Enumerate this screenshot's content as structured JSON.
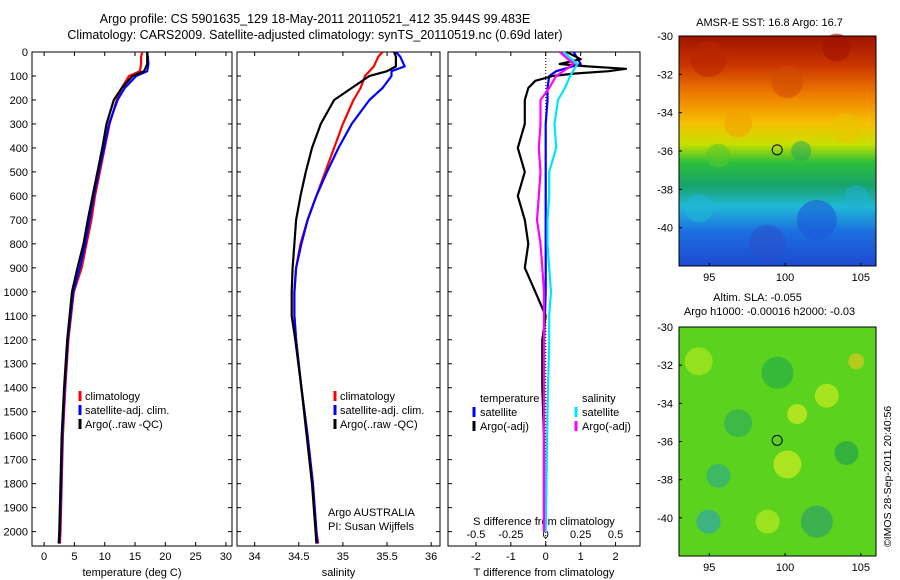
{
  "title_line1": "Argo profile: CS 5901635_129 18-May-2011 20110521_412 35.944S 99.483E",
  "title_line2": "Climatology: CARS2009. Satellite-adjusted climatology: synTS_20110519.nc (0.69d later)",
  "footer_stamp": "©IMOS 28-Sep-2011 20:40:56",
  "colors": {
    "climatology": "#ff0000",
    "satellite": "#0000ff",
    "argo": "#000000",
    "satellite_s": "#00e5ff",
    "argo_s": "#ff00ff"
  },
  "chart_data": [
    {
      "id": "temperature",
      "type": "line",
      "xlabel": "temperature (deg C)",
      "xlim": [
        -2,
        31
      ],
      "ylim": [
        0,
        2060
      ],
      "y_reversed": true,
      "xticks": [
        0,
        5,
        10,
        15,
        20,
        25,
        30
      ],
      "yticks": [
        0,
        100,
        200,
        300,
        400,
        500,
        600,
        700,
        800,
        900,
        1000,
        1100,
        1200,
        1300,
        1400,
        1500,
        1600,
        1700,
        1800,
        1900,
        2000
      ],
      "legend": [
        "climatology",
        "satellite-adj. clim.",
        "Argo(..raw -QC)"
      ],
      "series": [
        {
          "name": "climatology",
          "color": "red",
          "y": [
            0,
            20,
            50,
            80,
            100,
            150,
            200,
            300,
            400,
            500,
            600,
            700,
            800,
            900,
            1000,
            1200,
            1400,
            1600,
            1800,
            2000,
            2050
          ],
          "values": [
            16.2,
            16.0,
            16.0,
            15.8,
            14.0,
            12.8,
            12.0,
            10.8,
            10.0,
            9.2,
            8.4,
            7.8,
            7.0,
            6.2,
            4.9,
            4.0,
            3.5,
            3.1,
            2.9,
            2.7,
            2.6
          ]
        },
        {
          "name": "satellite-adj. clim.",
          "color": "blue",
          "y": [
            0,
            20,
            50,
            80,
            100,
            150,
            200,
            300,
            400,
            500,
            600,
            700,
            800,
            900,
            1000,
            1200,
            1400,
            1600,
            1800,
            2000,
            2050
          ],
          "values": [
            17.0,
            17.1,
            17.2,
            17.0,
            15.2,
            13.3,
            12.1,
            10.7,
            9.9,
            9.0,
            8.2,
            7.5,
            6.8,
            5.9,
            4.8,
            3.9,
            3.4,
            3.0,
            2.8,
            2.6,
            2.5
          ]
        },
        {
          "name": "Argo(..raw -QC)",
          "color": "black",
          "y": [
            0,
            20,
            50,
            80,
            100,
            150,
            200,
            300,
            400,
            500,
            600,
            700,
            800,
            900,
            1000,
            1200,
            1400,
            1600,
            1800,
            2000,
            2050
          ],
          "values": [
            17.0,
            17.0,
            17.0,
            16.5,
            14.6,
            12.8,
            11.5,
            10.3,
            9.6,
            8.8,
            8.0,
            7.2,
            6.5,
            5.5,
            4.6,
            3.8,
            3.3,
            2.9,
            2.7,
            2.5,
            2.4
          ]
        }
      ]
    },
    {
      "id": "salinity",
      "type": "line",
      "xlabel": "salinity",
      "xlim": [
        33.8,
        36.1
      ],
      "ylim": [
        0,
        2060
      ],
      "y_reversed": true,
      "xticks": [
        34,
        34.5,
        35,
        35.5,
        36
      ],
      "legend": [
        "climatology",
        "satellite-adj. clim.",
        "Argo(..raw -QC)"
      ],
      "annotation": [
        "Argo AUSTRALIA",
        "PI: Susan Wijffels"
      ],
      "series": [
        {
          "name": "climatology",
          "color": "red",
          "y": [
            0,
            20,
            60,
            80,
            100,
            150,
            200,
            300,
            400,
            500,
            600,
            700,
            800,
            900,
            1000,
            1100,
            1200,
            1400,
            1600,
            1800,
            2000,
            2050
          ],
          "values": [
            35.45,
            35.4,
            35.35,
            35.3,
            35.25,
            35.2,
            35.12,
            35.0,
            34.9,
            34.8,
            34.7,
            34.6,
            34.52,
            34.47,
            34.45,
            34.45,
            34.47,
            34.53,
            34.6,
            34.66,
            34.7,
            34.72
          ]
        },
        {
          "name": "satellite-adj. clim.",
          "color": "blue",
          "y": [
            0,
            20,
            60,
            80,
            100,
            150,
            200,
            300,
            400,
            500,
            600,
            700,
            800,
            900,
            1000,
            1100,
            1200,
            1400,
            1600,
            1800,
            2000,
            2050
          ],
          "values": [
            35.6,
            35.65,
            35.7,
            35.55,
            35.55,
            35.45,
            35.3,
            35.1,
            34.95,
            34.82,
            34.7,
            34.6,
            34.53,
            34.47,
            34.45,
            34.45,
            34.47,
            34.53,
            34.6,
            34.66,
            34.7,
            34.71
          ]
        },
        {
          "name": "Argo(..raw -QC)",
          "color": "black",
          "y": [
            0,
            20,
            60,
            80,
            100,
            150,
            200,
            300,
            400,
            500,
            600,
            700,
            800,
            900,
            1000,
            1100,
            1200,
            1400,
            1600,
            1800,
            2000,
            2050
          ],
          "values": [
            35.58,
            35.6,
            35.6,
            35.5,
            35.3,
            35.1,
            34.9,
            34.75,
            34.65,
            34.58,
            34.52,
            34.47,
            34.45,
            34.43,
            34.42,
            34.42,
            34.46,
            34.53,
            34.59,
            34.65,
            34.69,
            34.7
          ]
        }
      ]
    },
    {
      "id": "differences",
      "type": "line",
      "xlabel": "T difference from climatology",
      "xlabel_top": "S difference from climatology",
      "xlim": [
        -2.8,
        2.7
      ],
      "ylim": [
        0,
        2060
      ],
      "y_reversed": true,
      "xticks": [
        -2,
        -1,
        0,
        1,
        2
      ],
      "xticks_top": [
        "-0.5",
        "-0.25",
        "0",
        "0.25",
        "0.5"
      ],
      "legend_titles": [
        "temperature",
        "salinity"
      ],
      "legend": [
        "satellite",
        "Argo(-adj)",
        "satellite",
        "Argo(-adj)"
      ],
      "series": [
        {
          "name": "satellite",
          "group": "temperature",
          "color": "blue",
          "y": [
            0,
            50,
            80,
            100,
            150,
            200,
            300,
            500,
            800,
            1000,
            1200,
            1500,
            1800,
            2000
          ],
          "values": [
            0.8,
            1.0,
            0.3,
            0.1,
            0.05,
            0.05,
            0.0,
            0.0,
            0.0,
            0.0,
            -0.05,
            -0.05,
            -0.05,
            -0.05
          ]
        },
        {
          "name": "Argo(-adj)",
          "group": "temperature",
          "color": "black",
          "y": [
            0,
            30,
            50,
            60,
            70,
            80,
            90,
            100,
            120,
            150,
            200,
            300,
            400,
            500,
            600,
            700,
            800,
            900,
            1000,
            1100,
            1200,
            1400,
            1600,
            1800,
            2000
          ],
          "values": [
            0.6,
            1.0,
            0.4,
            1.2,
            2.3,
            1.8,
            0.8,
            0.2,
            -0.3,
            -0.5,
            -0.6,
            -0.6,
            -0.8,
            -0.6,
            -0.8,
            -0.6,
            -0.5,
            -0.6,
            -0.3,
            0.0,
            -0.1,
            -0.1,
            -0.05,
            -0.05,
            -0.05
          ]
        },
        {
          "name": "satellite",
          "group": "salinity",
          "color": "cyan",
          "y": [
            0,
            50,
            100,
            150,
            200,
            300,
            400,
            500,
            600,
            700,
            800,
            900,
            1000,
            1100,
            1200,
            1500,
            2000
          ],
          "values": [
            0.5,
            0.9,
            0.7,
            0.55,
            0.35,
            0.25,
            0.3,
            0.1,
            0.1,
            0.05,
            0.05,
            0.1,
            0.15,
            0.1,
            0.1,
            0.05,
            0.0
          ]
        },
        {
          "name": "Argo(-adj)",
          "group": "salinity",
          "color": "magenta",
          "y": [
            0,
            50,
            100,
            150,
            200,
            300,
            400,
            500,
            600,
            700,
            800,
            900,
            1000,
            1100,
            1200,
            1500,
            2000
          ],
          "values": [
            0.4,
            0.8,
            0.3,
            0.1,
            -0.15,
            -0.15,
            -0.2,
            -0.15,
            -0.2,
            -0.25,
            -0.15,
            -0.1,
            -0.05,
            -0.05,
            -0.05,
            -0.05,
            -0.05
          ]
        }
      ]
    },
    {
      "id": "sst_map",
      "type": "heatmap",
      "title": "AMSR-E SST: 16.8 Argo: 16.7",
      "xlim": [
        93,
        106
      ],
      "ylim": [
        -42,
        -30
      ],
      "xticks": [
        95,
        100,
        105
      ],
      "yticks": [
        -30,
        -32,
        -34,
        -36,
        -38,
        -40
      ],
      "marker": [
        99.48,
        -35.94
      ]
    },
    {
      "id": "sla_map",
      "type": "heatmap",
      "title_lines": [
        "Altim. SLA: -0.055",
        "Argo h1000: -0.00016 h2000: -0.03"
      ],
      "xlim": [
        93,
        106
      ],
      "ylim": [
        -42,
        -30
      ],
      "xticks": [
        95,
        100,
        105
      ],
      "yticks": [
        -30,
        -32,
        -34,
        -36,
        -38,
        -40
      ],
      "marker": [
        99.48,
        -35.94
      ]
    }
  ]
}
